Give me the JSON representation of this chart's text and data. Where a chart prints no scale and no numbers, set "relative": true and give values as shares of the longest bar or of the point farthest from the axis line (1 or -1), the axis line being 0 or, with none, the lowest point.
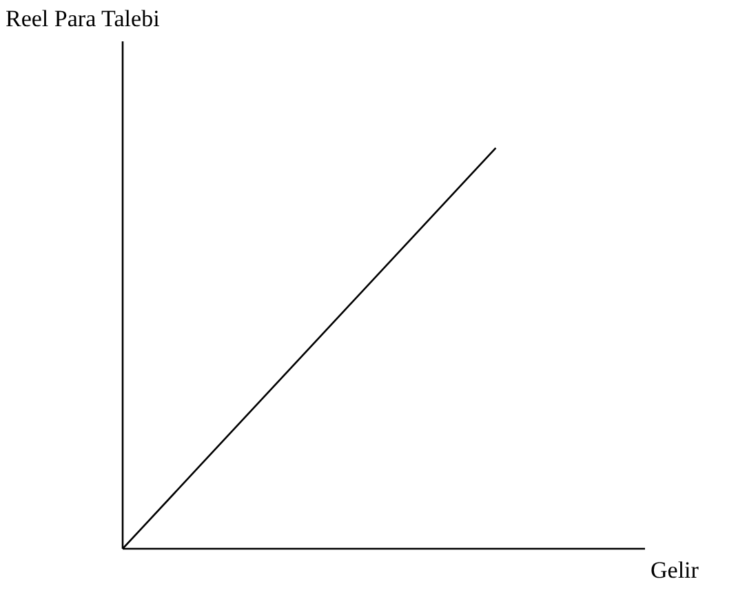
{
  "chart_data": {
    "type": "line",
    "relative": true,
    "xlabel": "Gelir",
    "ylabel": "Reel Para Talebi",
    "categories": [
      null,
      null,
      null,
      null,
      null,
      null,
      null,
      null
    ],
    "series": [
      {
        "color": "#000000",
        "values": [
          0,
          0.2,
          0.4,
          0.6,
          0.8,
          1,
          null,
          null
        ]
      }
    ],
    "marker": "none",
    "grid": false,
    "legend": false
  }
}
